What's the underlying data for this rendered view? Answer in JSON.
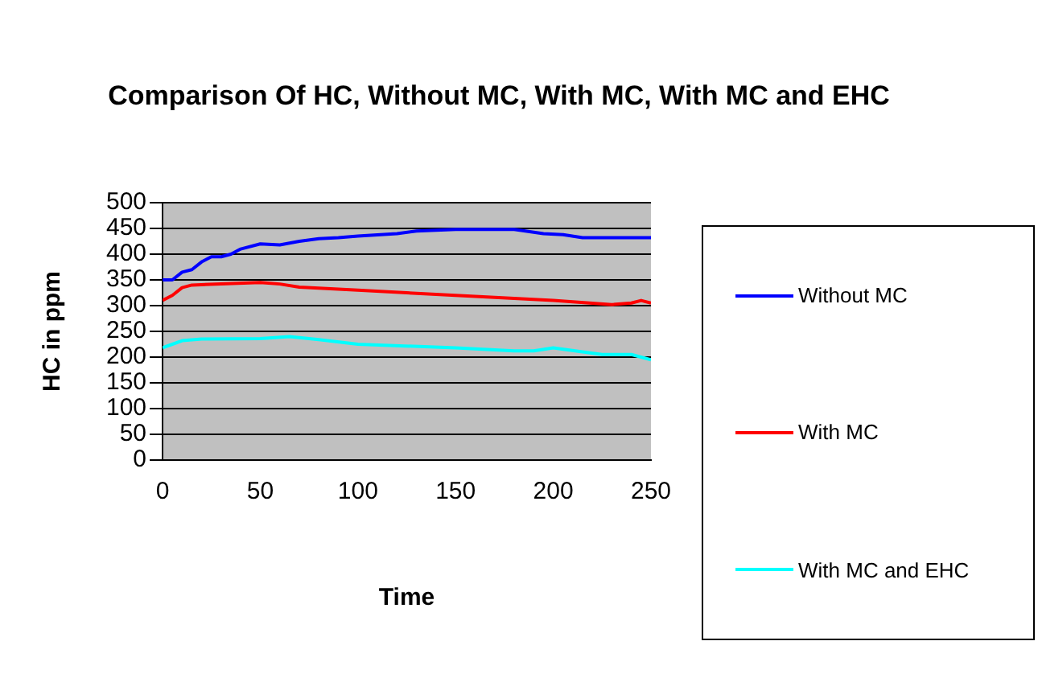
{
  "chart_data": {
    "type": "line",
    "title": "Comparison Of HC, Without MC, With MC, With MC and EHC",
    "xlabel": "Time",
    "ylabel": "HC in ppm",
    "xlim": [
      0,
      250
    ],
    "xticks": [
      0,
      50,
      100,
      150,
      200,
      250
    ],
    "ylim": [
      0,
      500
    ],
    "yticks": [
      0,
      50,
      100,
      150,
      200,
      250,
      300,
      350,
      400,
      450,
      500
    ],
    "grid": "y",
    "legend": "right",
    "marker": "none",
    "line_style": "solid",
    "series": [
      {
        "name": "Without MC",
        "color": "#0000ff",
        "x": [
          0,
          5,
          10,
          15,
          20,
          25,
          30,
          35,
          40,
          50,
          60,
          70,
          80,
          90,
          100,
          120,
          130,
          150,
          180,
          195,
          205,
          215,
          250
        ],
        "values": [
          350,
          350,
          365,
          370,
          385,
          395,
          395,
          400,
          410,
          420,
          418,
          425,
          430,
          432,
          435,
          440,
          445,
          448,
          448,
          440,
          438,
          432,
          432
        ]
      },
      {
        "name": "With MC",
        "color": "#ff0000",
        "x": [
          0,
          5,
          10,
          15,
          30,
          50,
          60,
          70,
          100,
          150,
          200,
          230,
          240,
          245,
          250
        ],
        "values": [
          310,
          320,
          335,
          340,
          342,
          345,
          342,
          336,
          330,
          320,
          310,
          302,
          305,
          310,
          305
        ]
      },
      {
        "name": "With MC and EHC",
        "color": "#00ffff",
        "x": [
          0,
          5,
          10,
          20,
          50,
          65,
          80,
          100,
          150,
          180,
          190,
          200,
          215,
          225,
          240,
          250
        ],
        "values": [
          218,
          225,
          232,
          235,
          236,
          240,
          234,
          225,
          218,
          212,
          212,
          218,
          210,
          205,
          205,
          195
        ]
      }
    ]
  }
}
